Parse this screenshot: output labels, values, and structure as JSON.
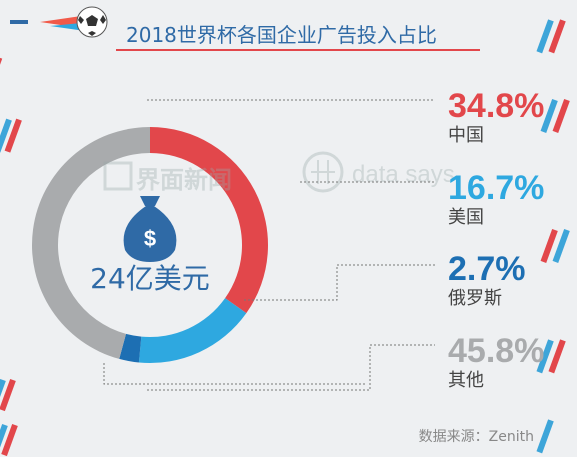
{
  "title": "2018世界杯各国企业广告投入占比",
  "center_label": "24亿美元",
  "watermark": {
    "brand_cn": "界面新闻",
    "brand_en": "data says"
  },
  "source": "数据来源：Zenith",
  "colors": {
    "china": "#e2474b",
    "usa": "#2ea8e0",
    "russia": "#1d6fb3",
    "other": "#a9abad",
    "title_bar": "#f15a4a",
    "title_text": "#2f6aa6"
  },
  "chart_data": {
    "type": "pie",
    "style": "donut",
    "labels": [
      "中国",
      "美国",
      "俄罗斯",
      "其他"
    ],
    "value_labels": [
      "34.8%",
      "16.7%",
      "2.7%",
      "45.8%"
    ],
    "values": [
      34.8,
      16.7,
      2.7,
      45.8
    ]
  }
}
